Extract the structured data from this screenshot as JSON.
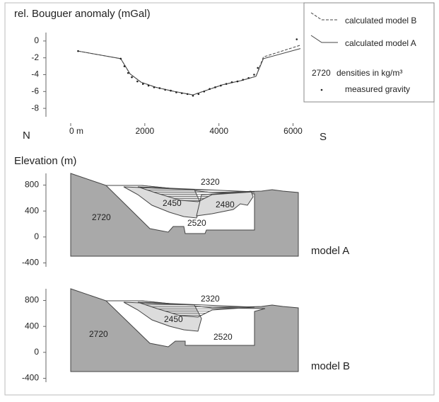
{
  "chart_data": {
    "type": "line",
    "title": "rel. Bouguer anomaly (mGal)",
    "direction_labels": [
      "N",
      "S"
    ],
    "xlim": [
      0,
      6200
    ],
    "xticks": [
      {
        "value": 0,
        "label": "0 m"
      },
      2000,
      4000,
      6000
    ],
    "ylim": [
      -9,
      1
    ],
    "yticks": [
      0,
      -2,
      -4,
      -6,
      -8
    ],
    "x": [
      200,
      1350,
      1600,
      1900,
      2300,
      2800,
      3300,
      3700,
      4100,
      4600,
      5000,
      5200,
      6200
    ],
    "series": [
      {
        "name": "calculated model B",
        "color": "#444444",
        "dashed": true,
        "values": [
          -1.2,
          -2.1,
          -3.9,
          -4.9,
          -5.5,
          -6.0,
          -6.4,
          -5.8,
          -5.2,
          -4.7,
          -4.2,
          -1.9,
          -0.5
        ]
      },
      {
        "name": "calculated model A",
        "color": "#444444",
        "dashed": false,
        "values": [
          -1.2,
          -2.1,
          -3.9,
          -4.9,
          -5.5,
          -6.0,
          -6.4,
          -5.8,
          -5.2,
          -4.7,
          -4.2,
          -2.1,
          -0.9
        ]
      }
    ],
    "measured": {
      "name": "measured gravity",
      "color": "#222222",
      "x": [
        200,
        1350,
        1450,
        1550,
        1650,
        1800,
        1950,
        2100,
        2250,
        2400,
        2550,
        2700,
        2850,
        3000,
        3150,
        3300,
        3450,
        3600,
        3750,
        3900,
        4050,
        4200,
        4350,
        4500,
        4650,
        4800,
        4950,
        5050,
        6100
      ],
      "values": [
        -1.2,
        -2.1,
        -3.0,
        -3.8,
        -4.3,
        -4.8,
        -5.1,
        -5.3,
        -5.5,
        -5.6,
        -5.8,
        -5.9,
        -6.1,
        -6.2,
        -6.3,
        -6.5,
        -6.3,
        -6.0,
        -5.7,
        -5.5,
        -5.3,
        -5.1,
        -4.9,
        -4.8,
        -4.6,
        -4.4,
        -4.0,
        -3.2,
        0.2
      ]
    },
    "legend_note": {
      "sample": "2720",
      "text": "densities in kg/m³"
    }
  },
  "elevation_label": "Elevation (m)",
  "sections": [
    {
      "name": "model A",
      "ylim": [
        -460,
        980
      ],
      "yticks": [
        800,
        400,
        0,
        -400
      ],
      "densities": [
        "2320",
        "2450",
        "2480",
        "2520",
        "2720"
      ]
    },
    {
      "name": "model B",
      "ylim": [
        -460,
        980
      ],
      "yticks": [
        800,
        400,
        0,
        -400
      ],
      "densities": [
        "2320",
        "2450",
        "2520",
        "2720"
      ]
    }
  ]
}
